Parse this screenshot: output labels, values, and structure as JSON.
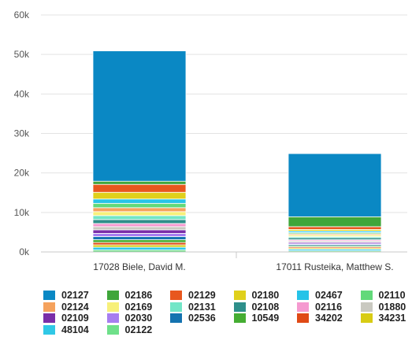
{
  "chart_data": {
    "type": "bar",
    "stacked": true,
    "categories": [
      "17028 Biele, David M.",
      "17011 Rusteika, Matthew S."
    ],
    "y_ticks": [
      "0k",
      "10k",
      "20k",
      "30k",
      "40k",
      "50k",
      "60k"
    ],
    "ylim": [
      0,
      60000
    ],
    "grid": true,
    "legend_position": "bottom",
    "series": [
      {
        "name": "02127",
        "color": "#0a88c4",
        "values": [
          33000,
          16000
        ]
      },
      {
        "name": "02186",
        "color": "#3fa63a",
        "values": [
          800,
          2500
        ]
      },
      {
        "name": "02129",
        "color": "#e8571e",
        "values": [
          2000,
          700
        ]
      },
      {
        "name": "02180",
        "color": "#e0d01b",
        "values": [
          1700,
          400
        ]
      },
      {
        "name": "02467",
        "color": "#26c3e8",
        "values": [
          1100,
          400
        ]
      },
      {
        "name": "02110",
        "color": "#62d97a",
        "values": [
          1100,
          300
        ]
      },
      {
        "name": "02124",
        "color": "#f5a25d",
        "values": [
          1000,
          300
        ]
      },
      {
        "name": "02169",
        "color": "#f7f07a",
        "values": [
          1000,
          400
        ]
      },
      {
        "name": "02131",
        "color": "#72e6c7",
        "values": [
          1000,
          300
        ]
      },
      {
        "name": "02108",
        "color": "#2e8f8a",
        "values": [
          1000,
          500
        ]
      },
      {
        "name": "02116",
        "color": "#f59ad0",
        "values": [
          800,
          300
        ]
      },
      {
        "name": "01880",
        "color": "#c9c9c0",
        "values": [
          800,
          300
        ]
      },
      {
        "name": "02109",
        "color": "#7a2ea8",
        "values": [
          900,
          300
        ]
      },
      {
        "name": "02030",
        "color": "#a77ef0",
        "values": [
          800,
          300
        ]
      },
      {
        "name": "02536",
        "color": "#1473b0",
        "values": [
          800,
          300
        ]
      },
      {
        "name": "10549",
        "color": "#45ad32",
        "values": [
          700,
          300
        ]
      },
      {
        "name": "34202",
        "color": "#e04a16",
        "values": [
          600,
          300
        ]
      },
      {
        "name": "34231",
        "color": "#d8cc14",
        "values": [
          600,
          300
        ]
      },
      {
        "name": "48104",
        "color": "#30c8e6",
        "values": [
          700,
          400
        ]
      },
      {
        "name": "02122",
        "color": "#6fe08a",
        "values": [
          500,
          300
        ]
      }
    ]
  }
}
